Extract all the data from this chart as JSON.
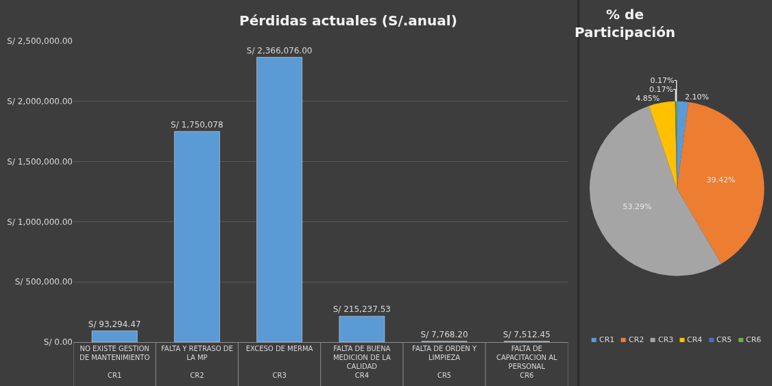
{
  "chart_data": [
    {
      "type": "bar",
      "title": "Pérdidas actuales (S/.anual)",
      "categories": [
        "NO EXISTE GESTION DE MANTENIMIENTO\nCR1",
        "FALTA Y RETRASO DE LA MP\nCR2",
        "EXCESO DE MERMA\nCR3",
        "FALTA DE BUENA MEDICION DE LA CALIDAD\nCR4",
        "FALTA DE ORDEN Y LIMPIEZA\nCR5",
        "FALTA DE CAPACITACION AL PERSONAL\nCR6"
      ],
      "values": [
        93294.47,
        1750078,
        2366076,
        215237.53,
        7768.2,
        7512.45
      ],
      "value_labels": [
        "S/ 93,294.47",
        "S/ 1,750,078",
        "S/ 2,366,076.00",
        "S/ 215,237.53",
        "S/ 7,768.20",
        "S/ 7,512.45"
      ],
      "color": "#5b9bd5",
      "ylim": [
        0,
        2500000
      ],
      "yticks": [
        {
          "value": 0,
          "label": "S/ 0.00"
        },
        {
          "value": 500000,
          "label": "S/ 500,000.00"
        },
        {
          "value": 1000000,
          "label": "S/ 1,000,000.00"
        },
        {
          "value": 1500000,
          "label": "S/ 1,500,000.00"
        },
        {
          "value": 2000000,
          "label": "S/ 2,000,000.00"
        },
        {
          "value": 2500000,
          "label": "S/ 2,500,000.00"
        }
      ],
      "grid": "y",
      "legend": false
    },
    {
      "type": "pie",
      "title": "% de Participación",
      "categories": [
        "CR1",
        "CR2",
        "CR3",
        "CR4",
        "CR5",
        "CR6"
      ],
      "values": [
        2.1,
        39.42,
        53.29,
        4.85,
        0.17,
        0.17
      ],
      "value_labels": [
        "2.10%",
        "39.42%",
        "53.29%",
        "4.85%",
        "0.17%",
        "0.17%"
      ],
      "colors": [
        "#5b9bd5",
        "#ed7d31",
        "#a5a5a5",
        "#ffc000",
        "#4472c4",
        "#70ad47"
      ],
      "legend": "bottom"
    }
  ]
}
